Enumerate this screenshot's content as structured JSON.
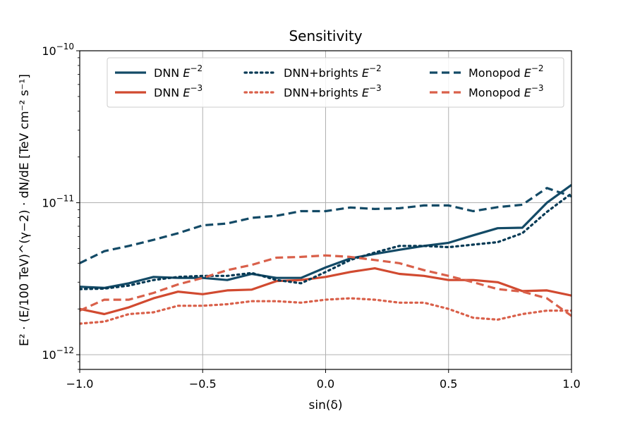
{
  "chart_data": {
    "type": "line",
    "title": "Sensitivity",
    "xlabel": "sin(δ)",
    "ylabel": "E² · (E/100 TeV)^(γ−2) · dN/dE  [TeV cm⁻² s⁻¹]",
    "xlim": [
      -1.0,
      1.0
    ],
    "ylim": [
      8e-13,
      1e-10
    ],
    "yscale": "log",
    "grid": true,
    "legend_placement": "upper center",
    "xticks": [
      "−1.0",
      "−0.5",
      "0.0",
      "0.5",
      "1.0"
    ],
    "yticks": [
      {
        "base": "10",
        "exp": "−10"
      },
      {
        "base": "10",
        "exp": "−11"
      },
      {
        "base": "10",
        "exp": "−12"
      }
    ],
    "x": [
      -1.0,
      -0.9,
      -0.8,
      -0.7,
      -0.6,
      -0.5,
      -0.4,
      -0.3,
      -0.2,
      -0.1,
      0.0,
      0.1,
      0.2,
      0.3,
      0.4,
      0.5,
      0.6,
      0.7,
      0.8,
      0.9,
      1.0
    ],
    "series": [
      {
        "name": "DNN E⁻²",
        "label_base": "DNN ",
        "label_exp": "−2",
        "color": "#134a66",
        "dash": "solid",
        "values": [
          2.8e-12,
          2.75e-12,
          2.95e-12,
          3.25e-12,
          3.2e-12,
          3.2e-12,
          3.1e-12,
          3.4e-12,
          3.2e-12,
          3.2e-12,
          3.75e-12,
          4.3e-12,
          4.6e-12,
          4.9e-12,
          5.2e-12,
          5.45e-12,
          6.1e-12,
          6.8e-12,
          6.85e-12,
          1e-11,
          1.31e-11
        ]
      },
      {
        "name": "DNN E⁻³",
        "label_base": "DNN ",
        "label_exp": "−3",
        "color": "#d14a30",
        "dash": "solid",
        "values": [
          2e-12,
          1.85e-12,
          2.05e-12,
          2.35e-12,
          2.6e-12,
          2.5e-12,
          2.65e-12,
          2.68e-12,
          3.05e-12,
          3.1e-12,
          3.25e-12,
          3.5e-12,
          3.7e-12,
          3.4e-12,
          3.3e-12,
          3.1e-12,
          3.1e-12,
          3e-12,
          2.62e-12,
          2.65e-12,
          2.45e-12
        ]
      },
      {
        "name": "DNN+brights E⁻²",
        "label_base": "DNN+brights ",
        "label_exp": "−2",
        "color": "#063a55",
        "dash": "dotted",
        "values": [
          2.7e-12,
          2.72e-12,
          2.85e-12,
          3.1e-12,
          3.25e-12,
          3.3e-12,
          3.3e-12,
          3.45e-12,
          3.1e-12,
          2.95e-12,
          3.5e-12,
          4.2e-12,
          4.7e-12,
          5.2e-12,
          5.2e-12,
          5.1e-12,
          5.3e-12,
          5.5e-12,
          6.3e-12,
          8.7e-12,
          1.15e-11
        ]
      },
      {
        "name": "DNN+brights E⁻³",
        "label_base": "DNN+brights ",
        "label_exp": "−3",
        "color": "#d9604a",
        "dash": "dotted",
        "values": [
          1.6e-12,
          1.65e-12,
          1.85e-12,
          1.9e-12,
          2.1e-12,
          2.1e-12,
          2.15e-12,
          2.25e-12,
          2.25e-12,
          2.2e-12,
          2.3e-12,
          2.35e-12,
          2.3e-12,
          2.2e-12,
          2.2e-12,
          2e-12,
          1.75e-12,
          1.7e-12,
          1.85e-12,
          1.95e-12,
          1.95e-12
        ]
      },
      {
        "name": "Monopod E⁻²",
        "label_base": "Monopod ",
        "label_exp": "−2",
        "color": "#134a66",
        "dash": "dashed",
        "values": [
          4e-12,
          4.8e-12,
          5.2e-12,
          5.7e-12,
          6.3e-12,
          7.1e-12,
          7.3e-12,
          7.95e-12,
          8.2e-12,
          8.8e-12,
          8.8e-12,
          9.3e-12,
          9.1e-12,
          9.2e-12,
          9.6e-12,
          9.6e-12,
          8.8e-12,
          9.35e-12,
          9.7e-12,
          1.25e-11,
          1.1e-11
        ]
      },
      {
        "name": "Monopod E⁻³",
        "label_base": "Monopod ",
        "label_exp": "−3",
        "color": "#d9604a",
        "dash": "dashed",
        "values": [
          1.95e-12,
          2.3e-12,
          2.3e-12,
          2.55e-12,
          2.9e-12,
          3.2e-12,
          3.6e-12,
          3.9e-12,
          4.35e-12,
          4.4e-12,
          4.5e-12,
          4.4e-12,
          4.2e-12,
          4e-12,
          3.6e-12,
          3.3e-12,
          3e-12,
          2.7e-12,
          2.6e-12,
          2.35e-12,
          1.8e-12
        ]
      }
    ]
  }
}
